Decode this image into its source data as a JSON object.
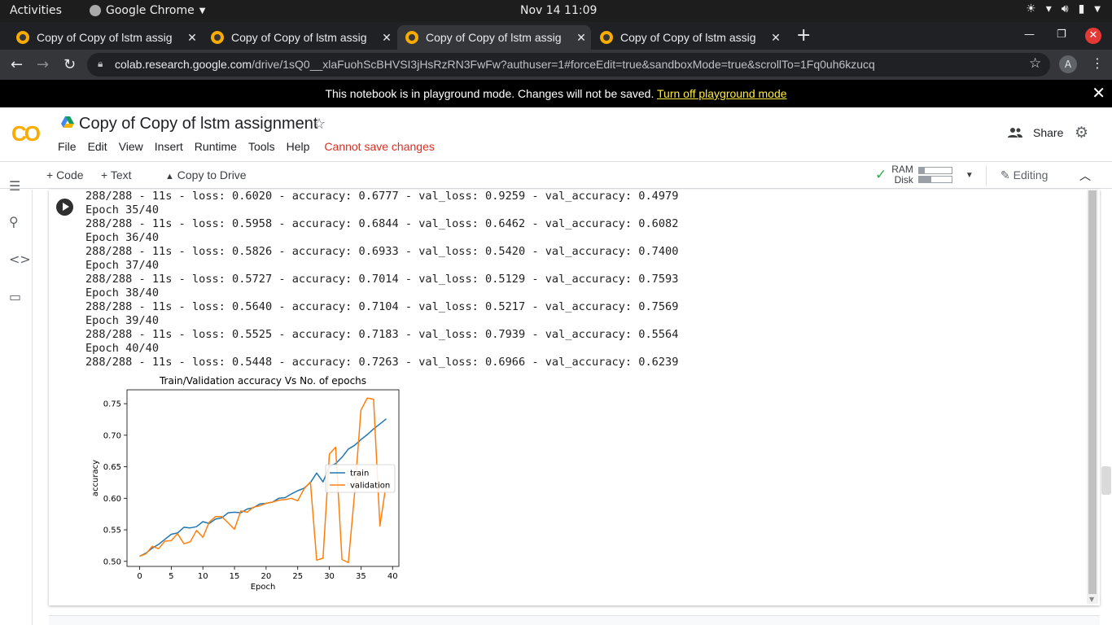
{
  "system": {
    "activities": "Activities",
    "app_name": "Google Chrome",
    "clock": "Nov 14  11:09"
  },
  "browser": {
    "tabs": [
      {
        "title": "Copy of Copy of lstm assig"
      },
      {
        "title": "Copy of Copy of lstm assig"
      },
      {
        "title": "Copy of Copy of lstm assig"
      },
      {
        "title": "Copy of Copy of lstm assig"
      }
    ],
    "url_host": "colab.research.google.com",
    "url_rest": "/drive/1sQ0__xlaFuohScBHVSI3jHsRzRN3FwFw?authuser=1#forceEdit=true&sandboxMode=true&scrollTo=1Fq0uh6kzucq",
    "profile_initial": "A"
  },
  "banner": {
    "text": "This notebook is in playground mode. Changes will not be saved. ",
    "link": "Turn off playground mode"
  },
  "notebook": {
    "logo": "CO",
    "title": "Copy of Copy of lstm assignment",
    "menus": [
      "File",
      "Edit",
      "View",
      "Insert",
      "Runtime",
      "Tools",
      "Help"
    ],
    "save_warning": "Cannot save changes",
    "share": "Share"
  },
  "toolbar": {
    "code": "+ Code",
    "text": "+ Text",
    "copy_to_drive": "Copy to Drive",
    "ram": "RAM",
    "disk": "Disk",
    "ram_usage": 0.18,
    "disk_usage": 0.38,
    "editing": "Editing"
  },
  "output_lines": [
    "288/288 - 11s - loss: 0.6020 - accuracy: 0.6777 - val_loss: 0.9259 - val_accuracy: 0.4979",
    "Epoch 35/40",
    "288/288 - 11s - loss: 0.5958 - accuracy: 0.6844 - val_loss: 0.6462 - val_accuracy: 0.6082",
    "Epoch 36/40",
    "288/288 - 11s - loss: 0.5826 - accuracy: 0.6933 - val_loss: 0.5420 - val_accuracy: 0.7400",
    "Epoch 37/40",
    "288/288 - 11s - loss: 0.5727 - accuracy: 0.7014 - val_loss: 0.5129 - val_accuracy: 0.7593",
    "Epoch 38/40",
    "288/288 - 11s - loss: 0.5640 - accuracy: 0.7104 - val_loss: 0.5217 - val_accuracy: 0.7569",
    "Epoch 39/40",
    "288/288 - 11s - loss: 0.5525 - accuracy: 0.7183 - val_loss: 0.7939 - val_accuracy: 0.5564",
    "Epoch 40/40",
    "288/288 - 11s - loss: 0.5448 - accuracy: 0.7263 - val_loss: 0.6966 - val_accuracy: 0.6239"
  ],
  "chart_data": {
    "type": "line",
    "title": "Train/Validation accuracy Vs No. of epochs",
    "xlabel": "Epoch",
    "ylabel": "accuracy",
    "xlim": [
      -2,
      41
    ],
    "ylim": [
      0.492,
      0.772
    ],
    "xticks": [
      0,
      5,
      10,
      15,
      20,
      25,
      30,
      35,
      40
    ],
    "yticks": [
      0.5,
      0.55,
      0.6,
      0.65,
      0.7,
      0.75
    ],
    "ytick_labels": [
      "0.50",
      "0.55",
      "0.60",
      "0.65",
      "0.70",
      "0.75"
    ],
    "legend_position": "center-right",
    "series": [
      {
        "name": "train",
        "color": "#1f77b4",
        "x": [
          0,
          1,
          2,
          3,
          4,
          5,
          6,
          7,
          8,
          9,
          10,
          11,
          12,
          13,
          14,
          15,
          16,
          17,
          18,
          19,
          20,
          21,
          22,
          23,
          24,
          25,
          26,
          27,
          28,
          29,
          30,
          31,
          32,
          33,
          34,
          35,
          36,
          37,
          38,
          39
        ],
        "values": [
          0.508,
          0.513,
          0.521,
          0.527,
          0.535,
          0.543,
          0.545,
          0.554,
          0.553,
          0.555,
          0.563,
          0.56,
          0.567,
          0.569,
          0.577,
          0.578,
          0.577,
          0.583,
          0.585,
          0.591,
          0.592,
          0.594,
          0.6,
          0.601,
          0.607,
          0.612,
          0.616,
          0.625,
          0.64,
          0.626,
          0.65,
          0.655,
          0.665,
          0.678,
          0.684,
          0.693,
          0.701,
          0.71,
          0.718,
          0.726
        ]
      },
      {
        "name": "validation",
        "color": "#ff7f0e",
        "x": [
          0,
          1,
          2,
          3,
          4,
          5,
          6,
          7,
          8,
          9,
          10,
          11,
          12,
          13,
          14,
          15,
          16,
          17,
          18,
          19,
          20,
          21,
          22,
          23,
          24,
          25,
          26,
          27,
          28,
          29,
          30,
          31,
          32,
          33,
          34,
          35,
          36,
          37,
          38,
          39
        ],
        "values": [
          0.508,
          0.512,
          0.524,
          0.52,
          0.532,
          0.533,
          0.544,
          0.528,
          0.531,
          0.549,
          0.538,
          0.562,
          0.571,
          0.571,
          0.561,
          0.551,
          0.58,
          0.578,
          0.586,
          0.588,
          0.592,
          0.594,
          0.597,
          0.598,
          0.6,
          0.596,
          0.615,
          0.626,
          0.502,
          0.505,
          0.67,
          0.681,
          0.503,
          0.498,
          0.608,
          0.74,
          0.759,
          0.757,
          0.556,
          0.624
        ]
      }
    ]
  }
}
